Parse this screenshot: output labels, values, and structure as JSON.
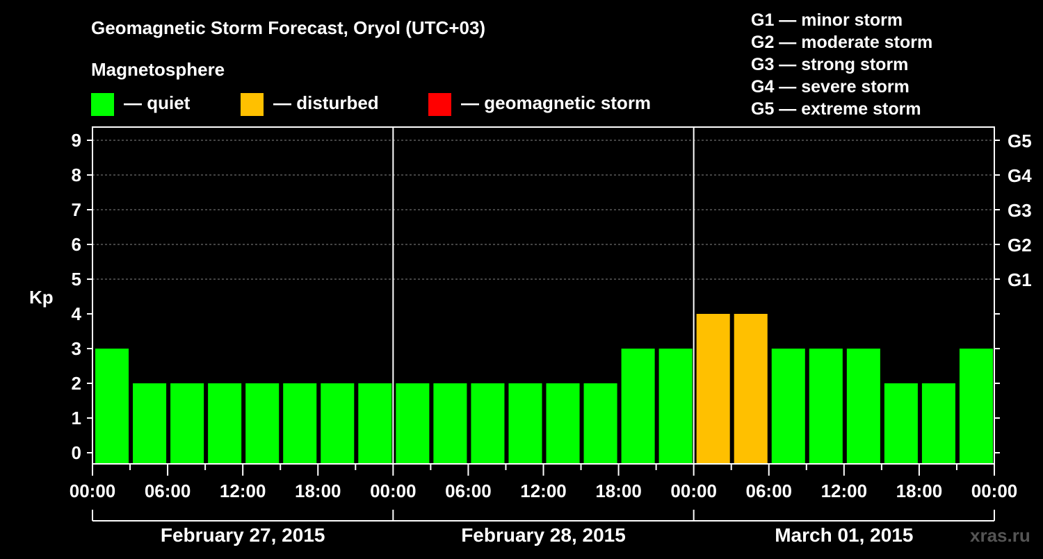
{
  "chart_data": {
    "type": "bar",
    "title": "Geomagnetic Storm Forecast, Oryol (UTC+03)",
    "legend_title": "Magnetosphere",
    "legend": [
      {
        "label": "— quiet",
        "color": "#00ff00"
      },
      {
        "label": "— disturbed",
        "color": "#ffc000"
      },
      {
        "label": "— geomagnetic storm",
        "color": "#ff0000"
      }
    ],
    "storm_scale": [
      "G1 — minor storm",
      "G2 — moderate storm",
      "G3 — strong storm",
      "G4 — severe storm",
      "G5 — extreme storm"
    ],
    "ylabel": "Kp",
    "ylim": [
      0,
      9
    ],
    "yticks": [
      "0",
      "1",
      "2",
      "3",
      "4",
      "5",
      "6",
      "7",
      "8",
      "9"
    ],
    "right_ticks": [
      {
        "kp": 5,
        "label": "G1"
      },
      {
        "kp": 6,
        "label": "G2"
      },
      {
        "kp": 7,
        "label": "G3"
      },
      {
        "kp": 8,
        "label": "G4"
      },
      {
        "kp": 9,
        "label": "G5"
      }
    ],
    "xtick_labels": [
      "00:00",
      "06:00",
      "12:00",
      "18:00",
      "00:00",
      "06:00",
      "12:00",
      "18:00",
      "00:00",
      "06:00",
      "12:00",
      "18:00",
      "00:00"
    ],
    "days": [
      "February 27, 2015",
      "February 28, 2015",
      "March 01, 2015"
    ],
    "interval_hours": 3,
    "values": [
      3,
      2,
      2,
      2,
      2,
      2,
      2,
      2,
      2,
      2,
      2,
      2,
      2,
      2,
      3,
      3,
      4,
      4,
      3,
      3,
      3,
      2,
      2,
      3
    ],
    "thresholds": {
      "disturbed": 4,
      "storm": 5
    },
    "grid": true
  },
  "watermark": "xras.ru"
}
